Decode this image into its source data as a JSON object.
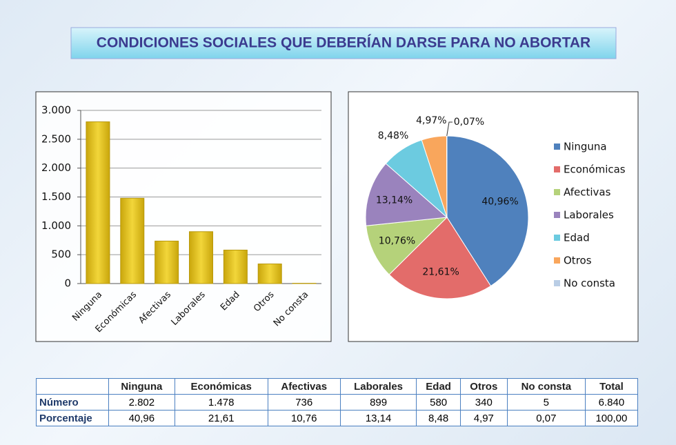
{
  "title": "CONDICIONES SOCIALES QUE DEBERÍAN DARSE PARA NO ABORTAR",
  "chart_data": [
    {
      "type": "bar",
      "categories": [
        "Ninguna",
        "Económicas",
        "Afectivas",
        "Laborales",
        "Edad",
        "Otros",
        "No consta"
      ],
      "values": [
        2802,
        1478,
        736,
        899,
        580,
        340,
        5
      ],
      "color": "#e3c21c",
      "ylim": [
        0,
        3000
      ],
      "yticks": [
        0,
        500,
        {
          "value": 1000,
          "label": "1.000"
        },
        {
          "value": 1500,
          "label": "1.500"
        },
        {
          "value": 2000,
          "label": "2.000"
        },
        {
          "value": 2500,
          "label": "2.500"
        },
        {
          "value": 3000,
          "label": "3.000"
        }
      ],
      "grid": true
    },
    {
      "type": "pie",
      "categories": [
        "Ninguna",
        "Económicas",
        "Afectivas",
        "Laborales",
        "Edad",
        "Otros",
        "No consta"
      ],
      "values": [
        40.96,
        21.61,
        10.76,
        13.14,
        8.48,
        4.97,
        0.07
      ],
      "value_labels": [
        "40,96%",
        "21,61%",
        "10,76%",
        "13,14%",
        "8,48%",
        "4,97%",
        "0,07%"
      ],
      "colors": [
        "#4f81bd",
        "#e36c6a",
        "#b5d27a",
        "#9a83bd",
        "#6ccbe0",
        "#f9a65c",
        "#b9cde5"
      ],
      "legend": "right"
    }
  ],
  "table": {
    "columns": [
      "Ninguna",
      "Económicas",
      "Afectivas",
      "Laborales",
      "Edad",
      "Otros",
      "No consta",
      "Total"
    ],
    "rows": [
      {
        "label": "Número",
        "cells": [
          "2.802",
          "1.478",
          "736",
          "899",
          "580",
          "340",
          "5",
          "6.840"
        ]
      },
      {
        "label": "Porcentaje",
        "cells": [
          "40,96",
          "21,61",
          "10,76",
          "13,14",
          "8,48",
          "4,97",
          "0,07",
          "100,00"
        ]
      }
    ]
  }
}
